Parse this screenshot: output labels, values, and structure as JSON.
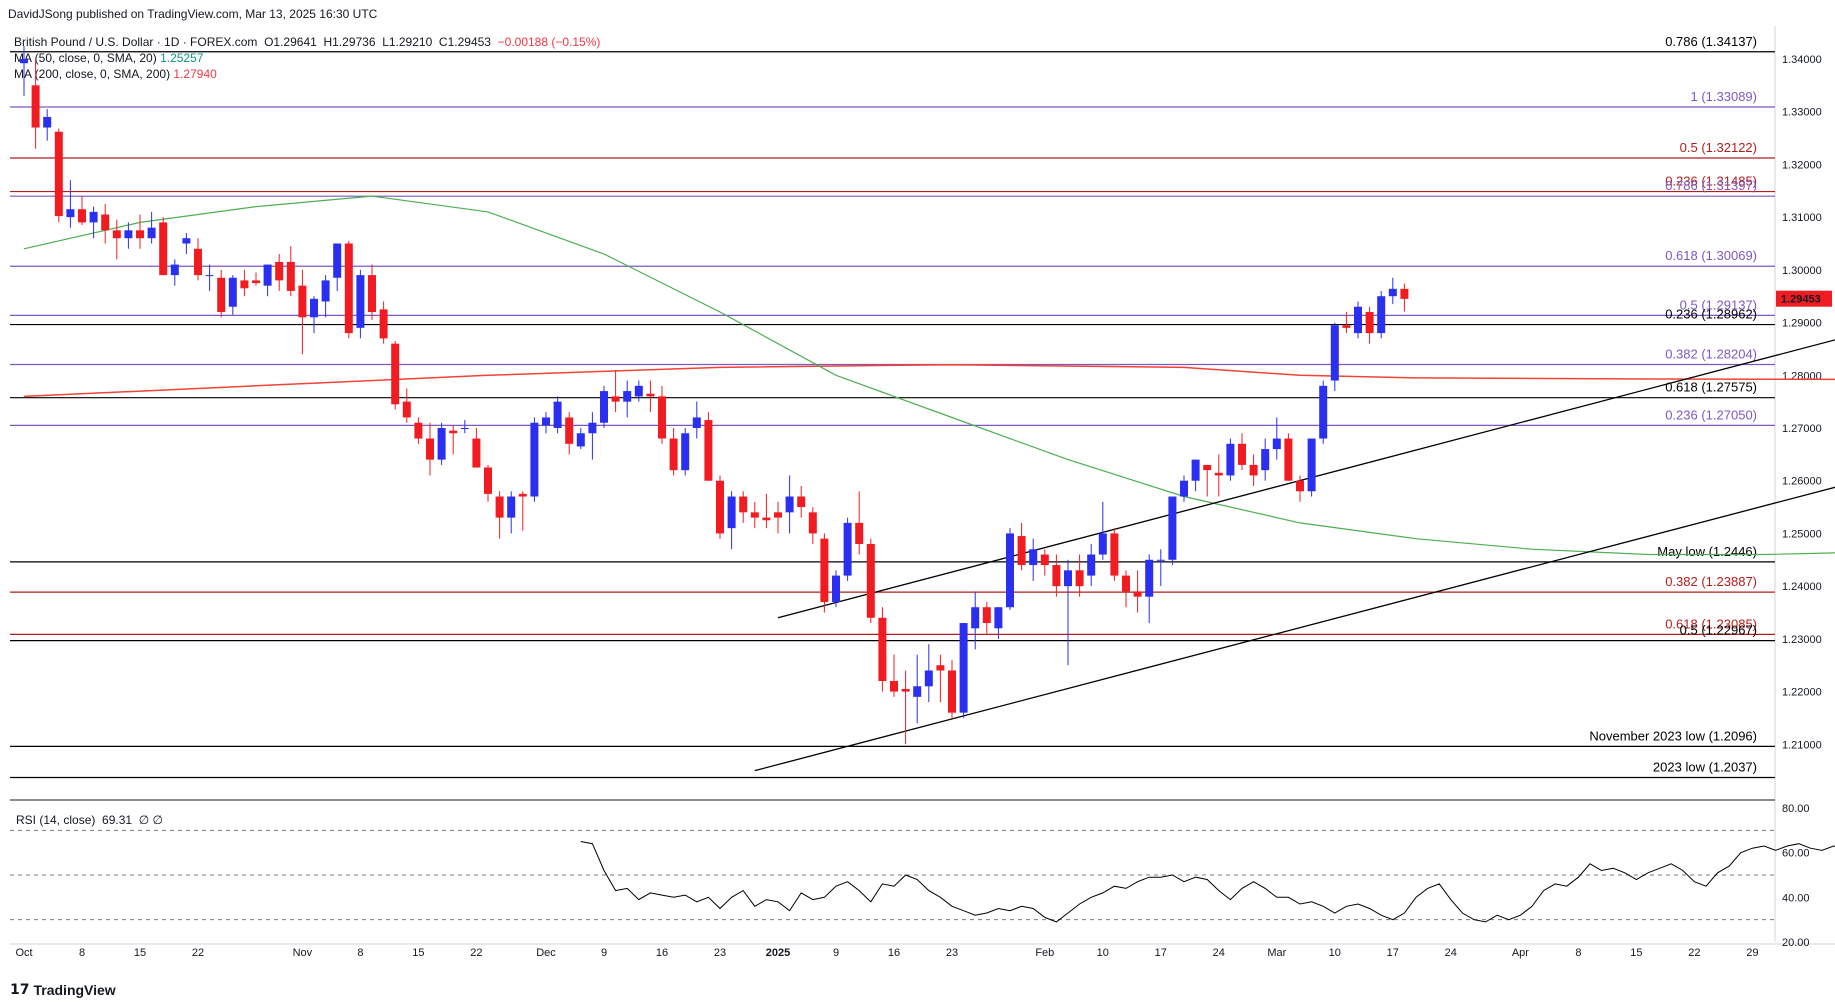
{
  "header": {
    "publisher": "DavidJSong published on TradingView.com, Mar 13, 2025 16:30 UTC"
  },
  "legend": {
    "symbol": "British Pound / U.S. Dollar · 1D · FOREX.com",
    "open": "O1.29641",
    "high": "H1.29736",
    "low": "L1.29210",
    "close": "C1.29453",
    "change": "−0.00188 (−0.15%)",
    "ma50_label": "MA (50, close, 0, SMA, 20)",
    "ma50_value": "1.25257",
    "ma200_label": "MA (200, close, 0, SMA, 200)",
    "ma200_value": "1.27940"
  },
  "rsi_legend": {
    "label": "RSI (14, close)",
    "value": "69.31",
    "extra": "∅ ∅"
  },
  "footer": {
    "brand": "TradingView"
  },
  "colors": {
    "up": "#2a2ff0",
    "down": "#f01c22",
    "ma50": "#4caf50",
    "ma200": "#f44336",
    "purple": "#7e57c2",
    "dark_red": "#b71c1c",
    "black": "#000000"
  },
  "chart_data": {
    "type": "candlestick",
    "instrument": "British Pound / U.S. Dollar",
    "price_axis": {
      "ylim": [
        1.2,
        1.3455
      ],
      "ticks": [
        "1.34000",
        "1.33000",
        "1.32000",
        "1.31000",
        "1.30000",
        "1.29000",
        "1.28000",
        "1.27000",
        "1.26000",
        "1.25000",
        "1.24000",
        "1.23000",
        "1.22000",
        "1.21000"
      ],
      "current_price": "1.29453"
    },
    "time_axis": {
      "ticks": [
        "Oct",
        "8",
        "15",
        "22",
        "Nov",
        "8",
        "15",
        "22",
        "Dec",
        "9",
        "16",
        "23",
        "2025",
        "9",
        "16",
        "23",
        "Feb",
        "10",
        "17",
        "24",
        "Mar",
        "10",
        "17",
        "24",
        "Apr",
        "8",
        "15",
        "22",
        "29"
      ],
      "tick_bar_index": [
        0,
        5,
        10,
        15,
        24,
        29,
        34,
        39,
        45,
        50,
        55,
        60,
        65,
        70,
        75,
        80,
        88,
        93,
        98,
        103,
        108,
        113,
        118,
        123,
        129,
        134,
        139,
        144,
        149
      ]
    },
    "levels": [
      {
        "label": "0.786 (1.34137)",
        "value": 1.34137,
        "color": "#000000"
      },
      {
        "label": "1 (1.33089)",
        "value": 1.33089,
        "color": "#7e57c2"
      },
      {
        "label": "0.5 (1.32122)",
        "value": 1.32122,
        "color": "#b71c1c"
      },
      {
        "label": "0.236 (1.31485)",
        "value": 1.31485,
        "color": "#b71c1c"
      },
      {
        "label": "0.786 (1.31397)",
        "value": 1.31397,
        "color": "#7e57c2"
      },
      {
        "label": "0.618 (1.30069)",
        "value": 1.30069,
        "color": "#7e57c2"
      },
      {
        "label": "0.5 (1.29137)",
        "value": 1.29137,
        "color": "#7e57c2"
      },
      {
        "label": "0.236 (1.28962)",
        "value": 1.28962,
        "color": "#000000"
      },
      {
        "label": "0.382 (1.28204)",
        "value": 1.28204,
        "color": "#7e57c2"
      },
      {
        "label": "0.618 (1.27575)",
        "value": 1.27575,
        "color": "#000000"
      },
      {
        "label": "0.236 (1.27050)",
        "value": 1.2705,
        "color": "#7e57c2"
      },
      {
        "label": "May low (1.2446)",
        "value": 1.2446,
        "color": "#000000"
      },
      {
        "label": "0.382 (1.23887)",
        "value": 1.23887,
        "color": "#b71c1c"
      },
      {
        "label": "0.618 (1.23085)",
        "value": 1.23085,
        "color": "#b71c1c"
      },
      {
        "label": "0.5 (1.22967)",
        "value": 1.22967,
        "color": "#000000"
      },
      {
        "label": "November 2023 low (1.2096)",
        "value": 1.2096,
        "color": "#000000"
      },
      {
        "label": "2023 low (1.2037)",
        "value": 1.2037,
        "color": "#000000"
      }
    ],
    "ohlc": [
      [
        1.3392,
        1.3425,
        1.333,
        1.34
      ],
      [
        1.335,
        1.34,
        1.323,
        1.327
      ],
      [
        1.327,
        1.3305,
        1.3245,
        1.329
      ],
      [
        1.3262,
        1.3268,
        1.309,
        1.3102
      ],
      [
        1.31,
        1.317,
        1.308,
        1.3115
      ],
      [
        1.3115,
        1.314,
        1.3085,
        1.309
      ],
      [
        1.309,
        1.312,
        1.306,
        1.311
      ],
      [
        1.3105,
        1.3125,
        1.305,
        1.3075
      ],
      [
        1.3075,
        1.3095,
        1.302,
        1.306
      ],
      [
        1.306,
        1.309,
        1.304,
        1.3075
      ],
      [
        1.3075,
        1.3105,
        1.304,
        1.306
      ],
      [
        1.306,
        1.311,
        1.305,
        1.308
      ],
      [
        1.309,
        1.31,
        1.299,
        1.299
      ],
      [
        1.299,
        1.302,
        1.297,
        1.301
      ],
      [
        1.305,
        1.307,
        1.303,
        1.306
      ],
      [
        1.304,
        1.306,
        1.298,
        1.299
      ],
      [
        1.299,
        1.301,
        1.296,
        1.299
      ],
      [
        1.2985,
        1.3,
        1.291,
        1.292
      ],
      [
        1.293,
        1.299,
        1.2915,
        1.2985
      ],
      [
        1.298,
        1.3,
        1.295,
        1.2965
      ],
      [
        1.298,
        1.2995,
        1.297,
        1.2975
      ],
      [
        1.297,
        1.301,
        1.295,
        1.301
      ],
      [
        1.3015,
        1.303,
        1.296,
        1.298
      ],
      [
        1.3015,
        1.3045,
        1.295,
        1.296
      ],
      [
        1.297,
        1.3,
        1.284,
        1.291
      ],
      [
        1.291,
        1.295,
        1.288,
        1.2945
      ],
      [
        1.294,
        1.299,
        1.291,
        1.298
      ],
      [
        1.2985,
        1.305,
        1.296,
        1.305
      ],
      [
        1.305,
        1.3055,
        1.287,
        1.288
      ],
      [
        1.289,
        1.3,
        1.287,
        1.299
      ],
      [
        1.299,
        1.301,
        1.2905,
        1.292
      ],
      [
        1.2925,
        1.294,
        1.286,
        1.287
      ],
      [
        1.286,
        1.2865,
        1.2735,
        1.2745
      ],
      [
        1.275,
        1.2775,
        1.271,
        1.272
      ],
      [
        1.271,
        1.272,
        1.267,
        1.268
      ],
      [
        1.268,
        1.271,
        1.261,
        1.264
      ],
      [
        1.264,
        1.271,
        1.263,
        1.27
      ],
      [
        1.2695,
        1.2705,
        1.265,
        1.269
      ],
      [
        1.27,
        1.2715,
        1.269,
        1.27
      ],
      [
        1.268,
        1.27,
        1.2625,
        1.2625
      ],
      [
        1.2625,
        1.263,
        1.256,
        1.2575
      ],
      [
        1.257,
        1.258,
        1.249,
        1.253
      ],
      [
        1.253,
        1.258,
        1.25,
        1.257
      ],
      [
        1.2575,
        1.258,
        1.2505,
        1.257
      ],
      [
        1.257,
        1.272,
        1.256,
        1.271
      ],
      [
        1.2705,
        1.273,
        1.269,
        1.272
      ],
      [
        1.27,
        1.276,
        1.269,
        1.275
      ],
      [
        1.272,
        1.273,
        1.265,
        1.267
      ],
      [
        1.2665,
        1.27,
        1.266,
        1.269
      ],
      [
        1.269,
        1.273,
        1.264,
        1.271
      ],
      [
        1.271,
        1.278,
        1.27,
        1.277
      ],
      [
        1.276,
        1.281,
        1.273,
        1.275
      ],
      [
        1.275,
        1.279,
        1.272,
        1.277
      ],
      [
        1.276,
        1.279,
        1.275,
        1.278
      ],
      [
        1.2765,
        1.279,
        1.273,
        1.276
      ],
      [
        1.276,
        1.278,
        1.267,
        1.268
      ],
      [
        1.268,
        1.27,
        1.261,
        1.262
      ],
      [
        1.262,
        1.27,
        1.261,
        1.269
      ],
      [
        1.27,
        1.275,
        1.268,
        1.272
      ],
      [
        1.2715,
        1.273,
        1.26,
        1.26
      ],
      [
        1.26,
        1.261,
        1.249,
        1.25
      ],
      [
        1.251,
        1.258,
        1.247,
        1.257
      ],
      [
        1.257,
        1.258,
        1.252,
        1.254
      ],
      [
        1.254,
        1.256,
        1.251,
        1.253
      ],
      [
        1.253,
        1.2575,
        1.251,
        1.2525
      ],
      [
        1.254,
        1.256,
        1.25,
        1.253
      ],
      [
        1.254,
        1.261,
        1.25,
        1.257
      ],
      [
        1.257,
        1.259,
        1.253,
        1.255
      ],
      [
        1.254,
        1.255,
        1.248,
        1.25
      ],
      [
        1.249,
        1.25,
        1.235,
        1.237
      ],
      [
        1.237,
        1.243,
        1.236,
        1.242
      ],
      [
        1.242,
        1.253,
        1.241,
        1.252
      ],
      [
        1.252,
        1.258,
        1.246,
        1.248
      ],
      [
        1.248,
        1.249,
        1.233,
        1.234
      ],
      [
        1.234,
        1.236,
        1.22,
        1.222
      ],
      [
        1.222,
        1.227,
        1.219,
        1.22
      ],
      [
        1.2205,
        1.224,
        1.21,
        1.22
      ],
      [
        1.219,
        1.227,
        1.214,
        1.221
      ],
      [
        1.221,
        1.229,
        1.218,
        1.224
      ],
      [
        1.225,
        1.227,
        1.218,
        1.224
      ],
      [
        1.224,
        1.226,
        1.215,
        1.216
      ],
      [
        1.216,
        1.233,
        1.215,
        1.233
      ],
      [
        1.232,
        1.239,
        1.228,
        1.236
      ],
      [
        1.236,
        1.237,
        1.231,
        1.233
      ],
      [
        1.232,
        1.236,
        1.23,
        1.236
      ],
      [
        1.236,
        1.251,
        1.2355,
        1.25
      ],
      [
        1.2495,
        1.252,
        1.243,
        1.244
      ],
      [
        1.244,
        1.249,
        1.241,
        1.247
      ],
      [
        1.246,
        1.247,
        1.242,
        1.244
      ],
      [
        1.244,
        1.246,
        1.238,
        1.24
      ],
      [
        1.24,
        1.245,
        1.225,
        1.243
      ],
      [
        1.243,
        1.246,
        1.238,
        1.24
      ],
      [
        1.242,
        1.248,
        1.24,
        1.246
      ],
      [
        1.246,
        1.256,
        1.245,
        1.25
      ],
      [
        1.25,
        1.251,
        1.241,
        1.242
      ],
      [
        1.242,
        1.243,
        1.236,
        1.239
      ],
      [
        1.239,
        1.243,
        1.235,
        1.238
      ],
      [
        1.238,
        1.246,
        1.233,
        1.245
      ],
      [
        1.245,
        1.247,
        1.24,
        1.245
      ],
      [
        1.245,
        1.257,
        1.244,
        1.257
      ],
      [
        1.257,
        1.261,
        1.256,
        1.26
      ],
      [
        1.26,
        1.264,
        1.258,
        1.264
      ],
      [
        1.263,
        1.263,
        1.257,
        1.262
      ],
      [
        1.2615,
        1.265,
        1.257,
        1.261
      ],
      [
        1.261,
        1.268,
        1.26,
        1.267
      ],
      [
        1.267,
        1.269,
        1.262,
        1.263
      ],
      [
        1.263,
        1.265,
        1.259,
        1.261
      ],
      [
        1.262,
        1.268,
        1.26,
        1.266
      ],
      [
        1.266,
        1.272,
        1.264,
        1.268
      ],
      [
        1.268,
        1.269,
        1.26,
        1.26
      ],
      [
        1.26,
        1.261,
        1.256,
        1.258
      ],
      [
        1.258,
        1.268,
        1.257,
        1.268
      ],
      [
        1.268,
        1.279,
        1.267,
        1.278
      ],
      [
        1.279,
        1.29,
        1.277,
        1.2895
      ],
      [
        1.2895,
        1.292,
        1.288,
        1.289
      ],
      [
        1.288,
        1.294,
        1.287,
        1.293
      ],
      [
        1.292,
        1.293,
        1.286,
        1.288
      ],
      [
        1.288,
        1.296,
        1.287,
        1.295
      ],
      [
        1.295,
        1.2985,
        1.2935,
        1.2964
      ],
      [
        1.2964,
        1.2974,
        1.2921,
        1.2945
      ]
    ],
    "ma50": [
      [
        0,
        1.304
      ],
      [
        10,
        1.309
      ],
      [
        20,
        1.312
      ],
      [
        30,
        1.314
      ],
      [
        40,
        1.311
      ],
      [
        50,
        1.303
      ],
      [
        60,
        1.292
      ],
      [
        70,
        1.28
      ],
      [
        80,
        1.272
      ],
      [
        90,
        1.264
      ],
      [
        100,
        1.257
      ],
      [
        110,
        1.252
      ],
      [
        120,
        1.249
      ],
      [
        130,
        1.247
      ],
      [
        140,
        1.246
      ],
      [
        150,
        1.246
      ],
      [
        160,
        1.2465
      ],
      [
        165,
        1.248
      ],
      [
        170,
        1.25
      ],
      [
        173,
        1.2526
      ]
    ],
    "ma200": [
      [
        0,
        1.276
      ],
      [
        20,
        1.278
      ],
      [
        40,
        1.28
      ],
      [
        60,
        1.2815
      ],
      [
        80,
        1.282
      ],
      [
        100,
        1.2815
      ],
      [
        110,
        1.28
      ],
      [
        120,
        1.2795
      ],
      [
        140,
        1.2793
      ],
      [
        160,
        1.2792
      ],
      [
        173,
        1.2794
      ]
    ],
    "trendlines": [
      {
        "from": [
          65,
          1.234
        ],
        "to": [
          186,
          1.304
        ]
      },
      {
        "from": [
          63,
          1.205
        ],
        "to": [
          186,
          1.276
        ]
      }
    ],
    "rsi": {
      "ylim": [
        20,
        80
      ],
      "ticks": [
        "80.00",
        "60.00",
        "40.00",
        "20.00"
      ],
      "bands": [
        70,
        50,
        30
      ],
      "values": [
        65,
        64,
        52,
        43,
        44,
        39,
        42,
        41,
        40,
        41,
        38,
        40,
        35,
        40,
        43,
        36,
        39,
        38,
        34,
        42,
        39,
        40,
        45,
        47,
        43,
        38,
        46,
        45,
        50,
        48,
        43,
        40,
        36,
        34,
        32,
        33,
        35,
        34,
        36,
        35,
        31,
        29,
        33,
        37,
        40,
        42,
        45,
        44,
        47,
        49,
        49,
        50,
        47,
        49,
        48,
        43,
        39,
        44,
        47,
        44,
        40,
        40,
        37,
        38,
        36,
        33,
        36,
        37,
        35,
        32,
        30,
        33,
        40,
        44,
        46,
        39,
        33,
        30,
        29,
        32,
        30,
        32,
        36,
        43,
        46,
        45,
        49,
        55,
        52,
        53,
        51,
        48,
        51,
        53,
        55,
        52,
        47,
        45,
        51,
        54,
        60,
        62,
        63,
        61,
        63,
        64,
        62,
        61,
        63,
        62,
        56,
        54,
        61,
        68,
        70,
        71,
        69,
        70,
        67,
        70,
        69
      ]
    },
    "rsi_x_offset": 48
  }
}
